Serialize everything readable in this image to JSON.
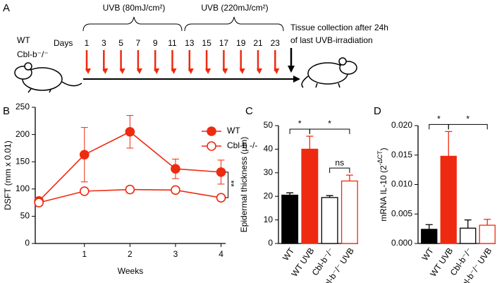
{
  "timeline": {
    "panel_label": "A",
    "phase_labels": [
      "UVB (80mJ/cm²)",
      "UVB (220mJ/cm²)"
    ],
    "groups": [
      "WT",
      "Cbl-b⁻/⁻"
    ],
    "days_label": "Days",
    "days": [
      "1",
      "3",
      "5",
      "7",
      "9",
      "11",
      "13",
      "15",
      "17",
      "19",
      "21",
      "23"
    ],
    "collection_note": [
      "Tissue collection after 24h",
      "of last UVB-irradiation"
    ]
  },
  "chart_data": [
    {
      "type": "line",
      "panel_label": "B",
      "xlabel": "Weeks",
      "ylabel": "DSFT (mm x 0.01)",
      "x": [
        0,
        1,
        2,
        3,
        4
      ],
      "xlim": [
        -0.08,
        4.1
      ],
      "xticks": [
        1,
        2,
        3,
        4
      ],
      "ylim": [
        0,
        250
      ],
      "yticks": [
        0,
        50,
        100,
        150,
        200,
        250
      ],
      "legend": "upper right",
      "series": [
        {
          "name": "WT",
          "color": "#ee2a10",
          "marker": "filled",
          "values": [
            78,
            163,
            205,
            137,
            131
          ],
          "errors": [
            4,
            50,
            30,
            18,
            22
          ]
        },
        {
          "name": "Cbl-b -/-",
          "color": "#ee2a10",
          "marker": "open",
          "values": [
            75,
            96,
            99,
            98,
            84
          ],
          "errors": [
            3,
            4,
            6,
            5,
            4
          ]
        }
      ],
      "annotations": [
        {
          "text": "**",
          "between": [
            "WT",
            "Cbl-b -/-"
          ]
        }
      ]
    },
    {
      "type": "bar",
      "panel_label": "C",
      "ylabel": "Epidermal thickness (µm)",
      "categories": [
        "WT",
        "WT UVB",
        "Cbl-b⁻/⁻",
        "Cbl-b⁻/⁻ UVB"
      ],
      "values": [
        20.5,
        40,
        19.5,
        26.5
      ],
      "errors": [
        1,
        5.5,
        0.8,
        2.5
      ],
      "colors": [
        "#000000",
        "#ee2a10",
        "#000000",
        "#ee2a10"
      ],
      "filled": [
        true,
        true,
        false,
        false
      ],
      "ylim": [
        0,
        50
      ],
      "yticks": [
        0,
        10,
        20,
        30,
        40,
        50
      ],
      "annotations": [
        {
          "text": "*",
          "between": [
            "WT",
            "WT UVB"
          ]
        },
        {
          "text": "*",
          "between": [
            "WT UVB",
            "Cbl-b⁻/⁻ UVB"
          ]
        },
        {
          "text": "ns",
          "between": [
            "Cbl-b⁻/⁻",
            "Cbl-b⁻/⁻ UVB"
          ]
        }
      ]
    },
    {
      "type": "bar",
      "panel_label": "D",
      "ylabel": "mRNA IL-10 (2",
      "ylabel_sup": "-ΔCT",
      "ylabel_end": ")",
      "categories": [
        "WT",
        "WT UVB",
        "Cbl-b⁻/⁻",
        "Cbl-b⁻/⁻ UVB"
      ],
      "values": [
        0.0024,
        0.0148,
        0.0026,
        0.0031
      ],
      "errors": [
        0.0008,
        0.0042,
        0.0014,
        0.001
      ],
      "colors": [
        "#000000",
        "#ee2a10",
        "#000000",
        "#ee2a10"
      ],
      "filled": [
        true,
        true,
        false,
        false
      ],
      "ylim": [
        0,
        0.02
      ],
      "yticks": [
        {
          "value": 0,
          "label": "0.000"
        },
        {
          "value": 0.005,
          "label": "0.005"
        },
        {
          "value": 0.01,
          "label": "0.010"
        },
        {
          "value": 0.015,
          "label": "0.015"
        },
        {
          "value": 0.02,
          "label": "0.020"
        }
      ],
      "annotations": [
        {
          "text": "*",
          "between": [
            "WT",
            "WT UVB"
          ]
        },
        {
          "text": "*",
          "between": [
            "WT UVB",
            "Cbl-b⁻/⁻ UVB"
          ]
        }
      ]
    }
  ]
}
